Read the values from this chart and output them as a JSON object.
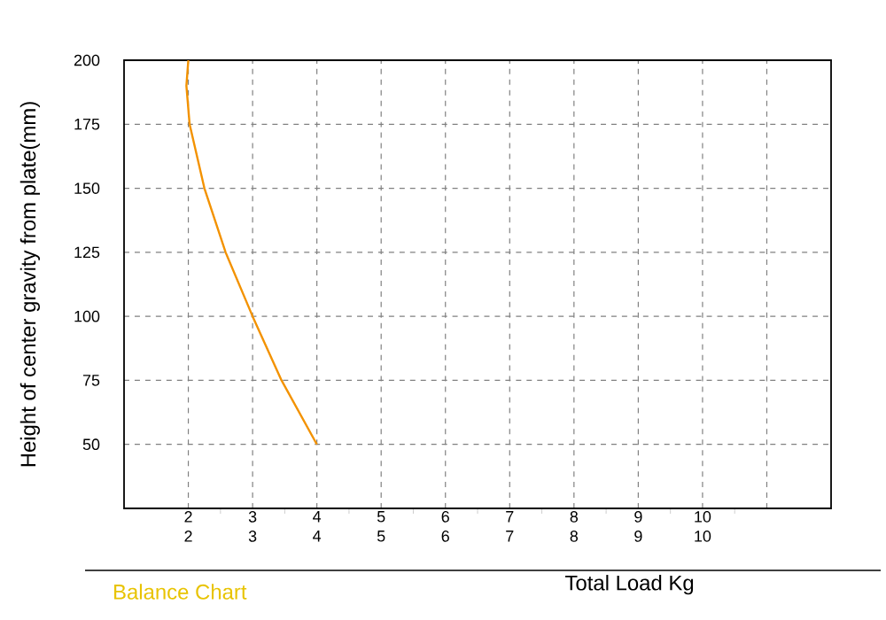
{
  "chart_data": {
    "type": "line",
    "title": "Balance Chart",
    "xlabel": "Total Load Kg",
    "ylabel": "Height of center gravity from plate(mm)",
    "x": [
      2,
      1.97,
      2.02,
      2.25,
      2.58,
      3,
      3.45,
      4
    ],
    "series": [
      {
        "color": "#f39200",
        "values": [
          200,
          190,
          175,
          150,
          125,
          100,
          75,
          50
        ]
      }
    ],
    "xlim": [
      1,
      12
    ],
    "xticks": [
      2,
      3,
      4,
      5,
      6,
      7,
      8,
      9,
      10,
      {
        "value": 11,
        "label": null
      }
    ],
    "x2lim": [
      1,
      12
    ],
    "x2ticks": [
      2,
      3,
      4,
      5,
      6,
      7,
      8,
      9,
      10
    ],
    "ylim": [
      25,
      200
    ],
    "yticks": [
      50,
      75,
      100,
      125,
      150,
      175,
      200
    ],
    "grid": true,
    "marker": "none"
  }
}
